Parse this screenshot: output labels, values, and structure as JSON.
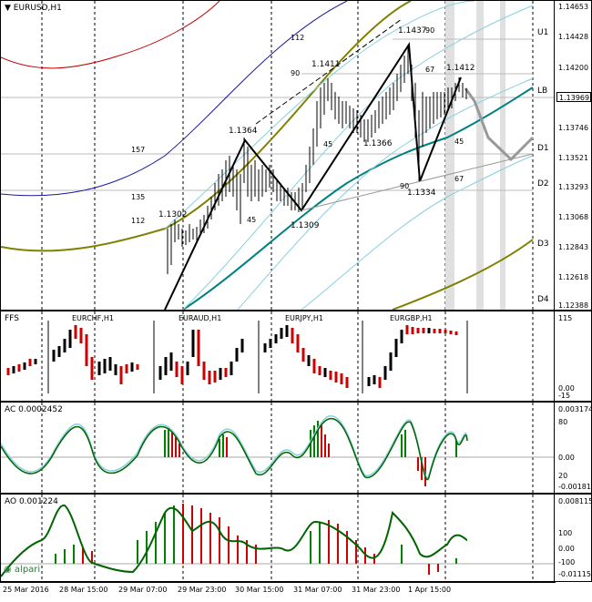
{
  "main": {
    "title": "EURUSD,H1",
    "price_ticks": [
      "1.14653",
      "1.14428",
      "1.14200",
      "1.13969",
      "1.13746",
      "1.13521",
      "1.13293",
      "1.13068",
      "1.12843",
      "1.12618",
      "1.12388"
    ],
    "current_price": "1.13969",
    "levels": {
      "u1": "U1",
      "lb": "LB",
      "d1": "D1",
      "d2": "D2",
      "d3": "D3",
      "d4": "D4"
    },
    "point_labels": [
      "1.1302",
      "1.1364",
      "1.1309",
      "1.1411",
      "1.1366",
      "1.1437",
      "1.1334",
      "1.1412"
    ],
    "fib_labels": [
      "112",
      "90",
      "157",
      "135",
      "112",
      "45",
      "45",
      "67",
      "90",
      "45",
      "67",
      "90"
    ]
  },
  "fxs": {
    "title": "FFS",
    "pairs": [
      "EURCHF,H1",
      "EURAUD,H1",
      "EURJPY,H1",
      "EURGBP,H1"
    ],
    "ticks": [
      "115",
      "0.00",
      "-15"
    ]
  },
  "ac": {
    "title": "AC 0.0002452",
    "ticks": [
      "0.003174",
      "80",
      "0.00",
      "20",
      "-0.001818"
    ]
  },
  "ao": {
    "title": "AO 0.001224",
    "ticks": [
      "0.008115",
      "100",
      "0.00",
      "-100",
      "-0.011153"
    ],
    "brand": "alpari"
  },
  "time_labels": [
    "25 Mar 2016",
    "28 Mar 15:00",
    "29 Mar 07:00",
    "29 Mar 23:00",
    "30 Mar 15:00",
    "31 Mar 07:00",
    "31 Mar 23:00",
    "1 Apr 15:00"
  ],
  "colors": {
    "olive": "#808000",
    "teal": "#008080",
    "navy": "#1a1aa0",
    "red": "#c00000",
    "light": "#87cfe0",
    "grey": "#999999",
    "green": "#006400"
  }
}
